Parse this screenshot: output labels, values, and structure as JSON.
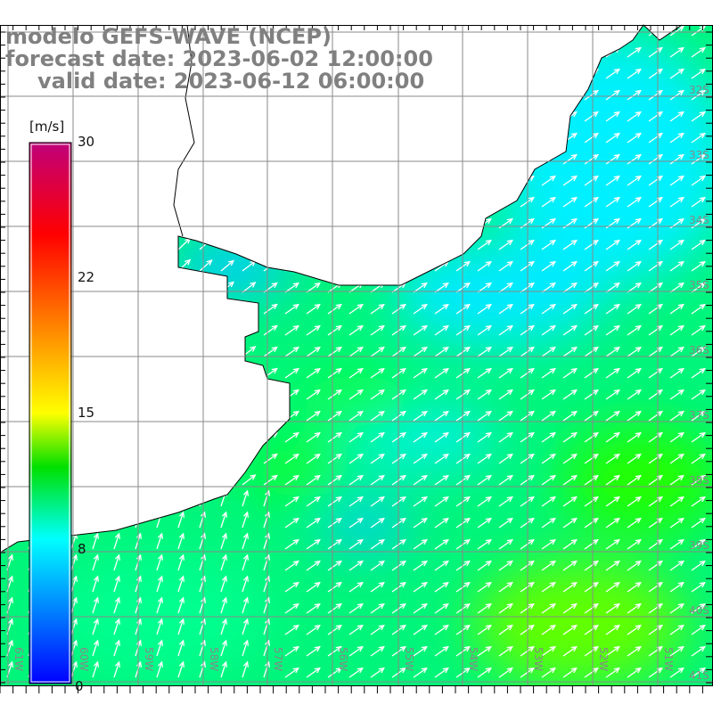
{
  "title": {
    "model": "modelo GEFS-WAVE (NCEP)",
    "forecast": "forecast date: 2023-06-02 12:00:00",
    "valid": "valid date: 2023-06-12 06:00:00"
  },
  "colorbar": {
    "unit": "[m/s]",
    "ticks": [
      "30",
      "22",
      "15",
      "8",
      "0"
    ],
    "range": [
      0,
      30
    ],
    "stops": [
      {
        "value": 0,
        "color": "#0000ff"
      },
      {
        "value": 8,
        "color": "#00ffff"
      },
      {
        "value": 12,
        "color": "#00e000"
      },
      {
        "value": 15,
        "color": "#ffff00"
      },
      {
        "value": 25,
        "color": "#ff0000"
      },
      {
        "value": 30,
        "color": "#c0007a"
      }
    ]
  },
  "lat_labels": [
    "32S",
    "33S",
    "34S",
    "35S",
    "36S",
    "37S",
    "38S",
    "39S",
    "40S",
    "41S"
  ],
  "lon_labels": [
    "61W",
    "60W",
    "59W",
    "58W",
    "57W",
    "56W",
    "55W",
    "54W",
    "53W",
    "52W",
    "51W"
  ],
  "colors": {
    "ocean": "#00f57a",
    "shallow": "#00eaff",
    "strong": "#10ff10",
    "grid": "#8a8a8a",
    "title": "#808080"
  }
}
